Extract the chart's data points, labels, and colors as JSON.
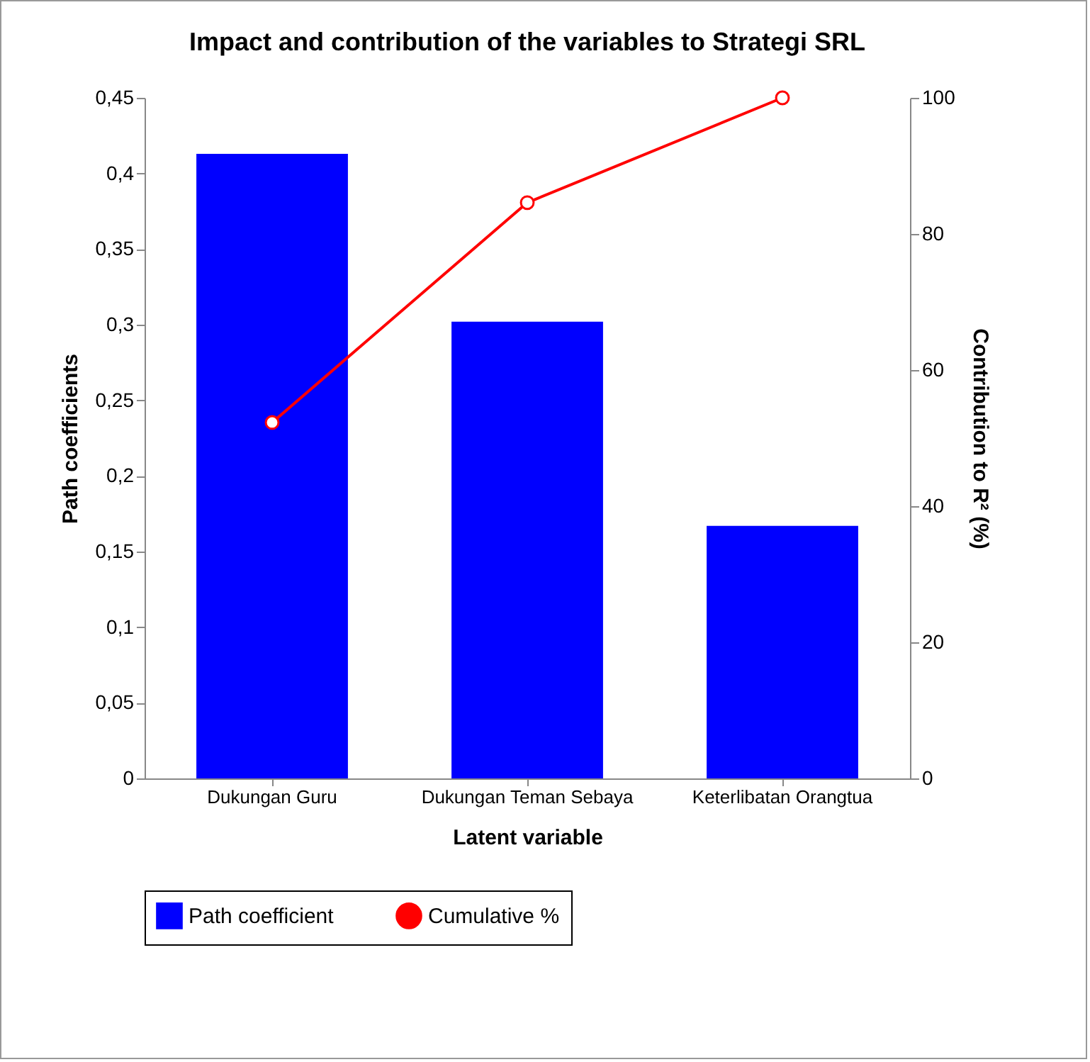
{
  "chart_data": {
    "type": "bar",
    "title": "Impact and contribution of the variables to Strategi SRL",
    "xlabel": "Latent variable",
    "ylabel": "Path coefficients",
    "y2label": "Contribution to R² (%)",
    "categories": [
      "Dukungan Guru",
      "Dukungan Teman Sebaya",
      "Keterlibatan Orangtua"
    ],
    "series": [
      {
        "name": "Path coefficient",
        "color": "#0000ff",
        "values": [
          0.413,
          0.302,
          0.167
        ]
      },
      {
        "name": "Cumulative %",
        "type": "line",
        "axis": "y2",
        "color": "#ff0000",
        "values": [
          52.3,
          84.6,
          100
        ]
      }
    ],
    "ylim": [
      0,
      0.45
    ],
    "yticks": [
      0,
      {
        "value": 0.05,
        "label": "0,05"
      },
      {
        "value": 0.1,
        "label": "0,1"
      },
      {
        "value": 0.15,
        "label": "0,15"
      },
      {
        "value": 0.2,
        "label": "0,2"
      },
      {
        "value": 0.25,
        "label": "0,25"
      },
      {
        "value": 0.3,
        "label": "0,3"
      },
      {
        "value": 0.35,
        "label": "0,35"
      },
      {
        "value": 0.4,
        "label": "0,4"
      },
      {
        "value": 0.45,
        "label": "0,45"
      }
    ],
    "y2lim": [
      0,
      100
    ],
    "y2ticks": [
      0,
      20,
      40,
      60,
      80,
      100
    ],
    "grid": false,
    "legend": "bottom",
    "marker": "circle",
    "line_style": "solid"
  }
}
